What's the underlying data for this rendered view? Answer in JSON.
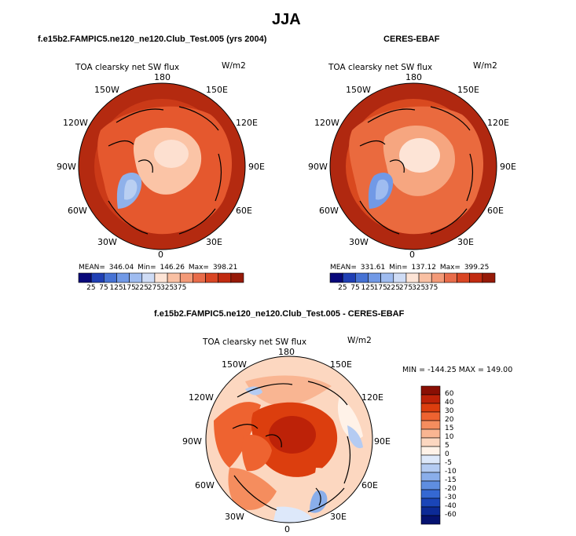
{
  "page": {
    "title": "JJA"
  },
  "panels": [
    {
      "id": "model",
      "title": "f.e15b2.FAMPIC5.ne120_ne120.Club_Test.005 (yrs 2004)",
      "variable": "TOA clearsky net SW flux",
      "units": "W/m2",
      "stats_line": "MEAN= 346.04    Min= 146.26    Max= 398.21",
      "lon_labels": [
        "180",
        "150E",
        "120E",
        "90E",
        "60E",
        "30E",
        "0",
        "30W",
        "60W",
        "90W",
        "120W",
        "150W"
      ]
    },
    {
      "id": "obs",
      "title": "CERES-EBAF",
      "variable": "TOA clearsky net SW flux",
      "units": "W/m2",
      "stats_line": "MEAN= 331.61    Min= 137.12    Max= 399.25",
      "lon_labels": [
        "180",
        "150E",
        "120E",
        "90E",
        "60E",
        "30E",
        "0",
        "30W",
        "60W",
        "90W",
        "120W",
        "150W"
      ]
    },
    {
      "id": "diff",
      "title": "f.e15b2.FAMPIC5.ne120_ne120.Club_Test.005 - CERES-EBAF",
      "variable": "TOA clearsky net SW flux",
      "units": "W/m2",
      "stats_line": "MIN = -144.25  MAX = 149.00",
      "lon_labels": [
        "180",
        "150E",
        "120E",
        "90E",
        "60E",
        "30E",
        "0",
        "30W",
        "60W",
        "90W",
        "120W",
        "150W"
      ]
    }
  ],
  "colorbar_abs": {
    "colors": [
      "#08087a",
      "#1f3fb4",
      "#4672d4",
      "#7199e6",
      "#9fbcf0",
      "#cfdcf5",
      "#fde4d6",
      "#f9c0a3",
      "#f39a78",
      "#e86c4a",
      "#d94624",
      "#c12b10",
      "#961a08"
    ],
    "labels": [
      "25",
      "75",
      "125",
      "175",
      "225",
      "275",
      "325",
      "375"
    ]
  },
  "colorbar_diff": {
    "colors": [
      "#8a0f04",
      "#bd2208",
      "#dc3e0e",
      "#ee6330",
      "#f58d5e",
      "#f9b592",
      "#fcd7c0",
      "#fff2e8",
      "#dde8fa",
      "#b4cbf2",
      "#8aaeea",
      "#5f8ee0",
      "#3568d2",
      "#1a45b8",
      "#0c2a96",
      "#051270"
    ],
    "labels": [
      "60",
      "40",
      "30",
      "20",
      "15",
      "10",
      "5",
      "0",
      "-5",
      "-10",
      "-15",
      "-20",
      "-30",
      "-40",
      "-60"
    ]
  }
}
